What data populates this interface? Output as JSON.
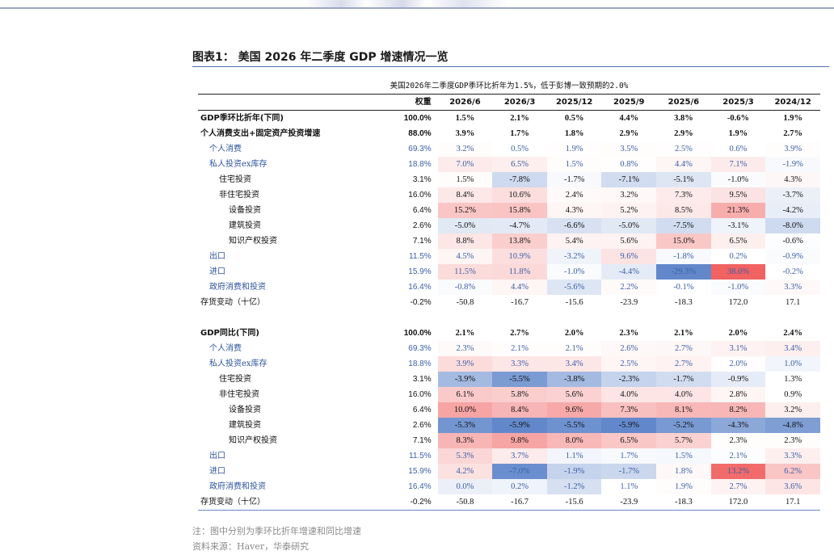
{
  "title": "图表1： 美国 2026 年二季度 GDP 增速情况一览",
  "subtitle": "美国2026年二季度GDP季环比折年为1.5%，低于彭博一致预期的2.0%",
  "header": {
    "weight": "权重",
    "dates": [
      "2026/6",
      "2026/3",
      "2025/12",
      "2025/9",
      "2025/6",
      "2025/3",
      "2024/12"
    ]
  },
  "colors": {
    "positive_max": "#f05a5a",
    "negative_max": "#5a82c8",
    "title_rule": "#4d70b8",
    "level1_text": "#2f55a0"
  },
  "section1": [
    {
      "label": "GDP季环比折年(下同)",
      "level": 0,
      "bold": true,
      "weight": "100.0%",
      "values": [
        "1.5%",
        "2.1%",
        "0.5%",
        "4.4%",
        "3.8%",
        "-0.6%",
        "1.9%"
      ],
      "heat": [
        0,
        0,
        0,
        0,
        0,
        0,
        0
      ]
    },
    {
      "label": "个人消费支出+固定资产投资增速",
      "level": 0,
      "bold": true,
      "weight": "88.0%",
      "values": [
        "3.9%",
        "1.7%",
        "1.8%",
        "2.9%",
        "2.9%",
        "1.9%",
        "2.7%"
      ],
      "heat": [
        0,
        0,
        0,
        0,
        0,
        0,
        0
      ]
    },
    {
      "label": "个人消费",
      "level": 1,
      "weight": "69.3%",
      "values": [
        "3.2%",
        "0.5%",
        "1.9%",
        "3.5%",
        "2.5%",
        "0.6%",
        "3.9%"
      ],
      "heat": [
        0.02,
        0,
        0.01,
        0.02,
        0.01,
        0,
        0.02
      ]
    },
    {
      "label": "私人投资ex库存",
      "level": 1,
      "weight": "18.8%",
      "values": [
        "7.0%",
        "6.5%",
        "1.5%",
        "0.8%",
        "4.4%",
        "7.1%",
        "-1.9%"
      ],
      "heat": [
        0.12,
        0.1,
        0.02,
        0.01,
        0.06,
        0.12,
        -0.05
      ]
    },
    {
      "label": "住宅投资",
      "level": 2,
      "weight": "3.1%",
      "values": [
        "1.5%",
        "-7.8%",
        "-1.7%",
        "-7.1%",
        "-5.1%",
        "-1.0%",
        "4.3%"
      ],
      "heat": [
        0.02,
        -0.3,
        -0.05,
        -0.28,
        -0.2,
        -0.03,
        0.05
      ]
    },
    {
      "label": "非住宅投资",
      "level": 2,
      "weight": "16.0%",
      "values": [
        "8.4%",
        "10.6%",
        "2.4%",
        "3.2%",
        "7.3%",
        "9.5%",
        "-3.7%"
      ],
      "heat": [
        0.14,
        0.2,
        0.03,
        0.04,
        0.12,
        0.17,
        -0.12
      ]
    },
    {
      "label": "设备投资",
      "level": 3,
      "weight": "6.4%",
      "values": [
        "15.2%",
        "15.8%",
        "4.3%",
        "5.2%",
        "8.5%",
        "21.3%",
        "-4.2%"
      ],
      "heat": [
        0.35,
        0.36,
        0.06,
        0.08,
        0.14,
        0.5,
        -0.14
      ]
    },
    {
      "label": "建筑投资",
      "level": 3,
      "weight": "2.6%",
      "values": [
        "-5.0%",
        "-4.7%",
        "-6.6%",
        "-5.0%",
        "-7.5%",
        "-3.1%",
        "-8.0%"
      ],
      "heat": [
        -0.18,
        -0.17,
        -0.24,
        -0.18,
        -0.28,
        -0.1,
        -0.3
      ]
    },
    {
      "label": "知识产权投资",
      "level": 3,
      "weight": "7.1%",
      "values": [
        "8.8%",
        "13.8%",
        "5.4%",
        "5.6%",
        "15.0%",
        "6.5%",
        "-0.6%"
      ],
      "heat": [
        0.15,
        0.3,
        0.08,
        0.08,
        0.34,
        0.1,
        -0.02
      ]
    },
    {
      "label": "出口",
      "level": 1,
      "weight": "11.5%",
      "values": [
        "4.5%",
        "10.9%",
        "-3.2%",
        "9.6%",
        "-1.8%",
        "0.2%",
        "-0.9%"
      ],
      "heat": [
        0.06,
        0.2,
        -0.1,
        0.17,
        -0.05,
        0,
        -0.03
      ]
    },
    {
      "label": "进口",
      "level": 1,
      "weight": "15.9%",
      "values": [
        "11.5%",
        "11.8%",
        "-1.0%",
        "-4.4%",
        "-29.3%",
        "38.0%",
        "-0.2%"
      ],
      "heat": [
        0.22,
        0.23,
        -0.03,
        -0.16,
        -0.95,
        0.95,
        0
      ]
    },
    {
      "label": "政府消费和投资",
      "level": 1,
      "weight": "16.4%",
      "values": [
        "-0.8%",
        "4.4%",
        "-5.6%",
        "2.2%",
        "-0.1%",
        "-1.0%",
        "3.3%"
      ],
      "heat": [
        -0.03,
        0.06,
        -0.2,
        0.03,
        0,
        -0.03,
        0.04
      ]
    },
    {
      "label": "存货变动（十亿）",
      "level": 0,
      "bold": false,
      "weight": "-0.2%",
      "values": [
        "-50.8",
        "-16.7",
        "-15.6",
        "-23.9",
        "-18.3",
        "172.0",
        "17.1"
      ],
      "heat": [
        0,
        0,
        0,
        0,
        0,
        0,
        0
      ]
    }
  ],
  "section2": [
    {
      "label": "GDP同比(下同)",
      "level": 0,
      "bold": true,
      "weight": "100.0%",
      "values": [
        "2.1%",
        "2.7%",
        "2.0%",
        "2.3%",
        "2.1%",
        "2.0%",
        "2.4%"
      ],
      "heat": [
        0,
        0,
        0,
        0,
        0,
        0,
        0
      ]
    },
    {
      "label": "个人消费",
      "level": 1,
      "weight": "69.3%",
      "values": [
        "2.3%",
        "2.1%",
        "2.1%",
        "2.6%",
        "2.7%",
        "3.1%",
        "3.4%"
      ],
      "heat": [
        0.03,
        0.02,
        0.02,
        0.04,
        0.05,
        0.08,
        0.1
      ]
    },
    {
      "label": "私人投资ex库存",
      "level": 1,
      "weight": "18.8%",
      "values": [
        "3.9%",
        "3.3%",
        "3.4%",
        "2.5%",
        "2.7%",
        "2.0%",
        "1.0%"
      ],
      "heat": [
        0.22,
        0.15,
        0.15,
        0.06,
        0.08,
        0.01,
        -0.08
      ]
    },
    {
      "label": "住宅投资",
      "level": 2,
      "weight": "3.1%",
      "values": [
        "-3.9%",
        "-5.5%",
        "-3.8%",
        "-2.3%",
        "-1.7%",
        "-0.9%",
        "1.3%"
      ],
      "heat": [
        -0.55,
        -0.8,
        -0.55,
        -0.35,
        -0.28,
        -0.15,
        0
      ]
    },
    {
      "label": "非住宅投资",
      "level": 2,
      "weight": "16.0%",
      "values": [
        "6.1%",
        "5.8%",
        "5.6%",
        "4.0%",
        "4.0%",
        "2.8%",
        "0.9%"
      ],
      "heat": [
        0.32,
        0.3,
        0.28,
        0.16,
        0.16,
        0.06,
        0
      ]
    },
    {
      "label": "设备投资",
      "level": 3,
      "weight": "6.4%",
      "values": [
        "10.0%",
        "8.4%",
        "9.6%",
        "7.3%",
        "8.1%",
        "8.2%",
        "3.2%"
      ],
      "heat": [
        0.55,
        0.45,
        0.52,
        0.38,
        0.43,
        0.44,
        0.1
      ]
    },
    {
      "label": "建筑投资",
      "level": 3,
      "weight": "2.6%",
      "values": [
        "-5.3%",
        "-5.9%",
        "-5.5%",
        "-5.9%",
        "-5.2%",
        "-4.3%",
        "-4.8%"
      ],
      "heat": [
        -0.85,
        -0.95,
        -0.88,
        -0.95,
        -0.82,
        -0.7,
        -0.78
      ]
    },
    {
      "label": "知识产权投资",
      "level": 3,
      "weight": "7.1%",
      "values": [
        "8.3%",
        "9.8%",
        "8.0%",
        "6.5%",
        "5.7%",
        "2.3%",
        "2.3%"
      ],
      "heat": [
        0.45,
        0.55,
        0.43,
        0.34,
        0.28,
        0.02,
        0.02
      ]
    },
    {
      "label": "出口",
      "level": 1,
      "weight": "11.5%",
      "values": [
        "5.3%",
        "3.7%",
        "1.1%",
        "1.7%",
        "1.5%",
        "2.1%",
        "3.3%"
      ],
      "heat": [
        0.25,
        0.12,
        -0.08,
        -0.05,
        -0.06,
        -0.02,
        0.1
      ]
    },
    {
      "label": "进口",
      "level": 1,
      "weight": "15.9%",
      "values": [
        "4.2%",
        "-7.0%",
        "-1.9%",
        "-1.7%",
        "1.8%",
        "13.2%",
        "6.2%"
      ],
      "heat": [
        0.18,
        -0.9,
        -0.35,
        -0.32,
        0.04,
        0.9,
        0.35
      ]
    },
    {
      "label": "政府消费和投资",
      "level": 1,
      "weight": "16.4%",
      "values": [
        "0.0%",
        "0.2%",
        "-1.2%",
        "1.1%",
        "1.9%",
        "2.7%",
        "3.6%"
      ],
      "heat": [
        -0.12,
        -0.1,
        -0.25,
        0,
        0.02,
        0.08,
        0.16
      ]
    },
    {
      "label": "存货变动（十亿）",
      "level": 0,
      "bold": false,
      "weight": "-0.2%",
      "values": [
        "-50.8",
        "-16.7",
        "-15.6",
        "-23.9",
        "-18.3",
        "172.0",
        "17.1"
      ],
      "heat": [
        0,
        0,
        0,
        0,
        0,
        0,
        0
      ]
    }
  ],
  "note": "注：图中分别为季环比折年增速和同比增速",
  "source": "资料来源：Haver，华泰研究"
}
